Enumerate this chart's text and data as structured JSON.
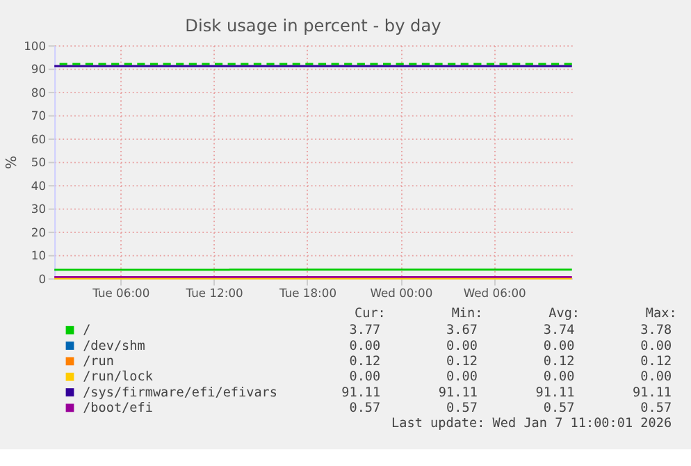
{
  "chart_data": {
    "type": "step",
    "title": "Disk usage in percent - by day",
    "ylabel": "%",
    "xlim": [
      "2026-01-06T01:45",
      "2026-01-07T11:00"
    ],
    "xticks": [
      {
        "value": "2026-01-06T06:00",
        "label": "Tue 06:00"
      },
      {
        "value": "2026-01-06T12:00",
        "label": "Tue 12:00"
      },
      {
        "value": "2026-01-06T18:00",
        "label": "Tue 18:00"
      },
      {
        "value": "2026-01-07T00:00",
        "label": "Wed 00:00"
      },
      {
        "value": "2026-01-07T06:00",
        "label": "Wed 06:00"
      }
    ],
    "ylim": [
      0,
      100
    ],
    "yticks": [
      0,
      10,
      20,
      30,
      40,
      50,
      60,
      70,
      80,
      90,
      100
    ],
    "grid": true,
    "legend": "bottom",
    "line_style": "solid",
    "marker": "none",
    "series": [
      {
        "name": "/",
        "color": "#00cc00",
        "x": [
          "2026-01-06T01:45",
          "2026-01-06T13:00",
          "2026-01-07T11:00"
        ],
        "values": [
          3.67,
          3.77,
          3.77
        ]
      },
      {
        "name": "/dev/shm",
        "color": "#0066b3",
        "values": [
          null
        ]
      },
      {
        "name": "/run",
        "color": "#ff8000",
        "values": [
          null
        ]
      },
      {
        "name": "/run/lock",
        "color": "#ffcc00",
        "x": [
          "2026-01-06T01:45",
          "2026-01-07T11:00"
        ],
        "values": [
          0,
          0
        ]
      },
      {
        "name": "/sys/firmware/efi/efivars",
        "color": "#330099",
        "x": [
          "2026-01-06T01:45",
          "2026-01-07T11:00"
        ],
        "values": [
          91.11,
          91.11
        ]
      },
      {
        "name": "/boot/efi",
        "color": "#990099",
        "x": [
          "2026-01-06T01:45",
          "2026-01-07T11:00"
        ],
        "values": [
          0.57,
          0.57
        ]
      }
    ],
    "ref_lines": [
      {
        "axis": "y",
        "value": 92,
        "color": "#00cc00",
        "line_style": "dashed"
      }
    ],
    "annotations": [
      "Cur:",
      "Min:",
      "Avg:",
      "Max:",
      "3.77",
      "3.67",
      "3.74",
      "3.78",
      "0.00",
      "0.00",
      "0.00",
      "0.00",
      "0.12",
      "0.12",
      "0.12",
      "0.12",
      "0.00",
      "0.00",
      "0.00",
      "0.00",
      "91.11",
      "91.11",
      "91.11",
      "91.11",
      "0.57",
      "0.57",
      "0.57",
      "0.57",
      "Last update: Wed Jan  7 11:00:01 2026"
    ]
  }
}
